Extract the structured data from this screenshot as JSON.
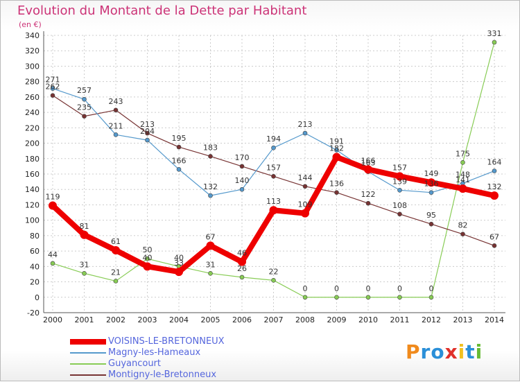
{
  "header": {
    "title": "Evolution du Montant de la Dette par Habitant",
    "unit": "(en €)"
  },
  "logo": {
    "text": "Proxiti",
    "colors": [
      "#f08a1c",
      "#2a8fd8",
      "#2a8fd8",
      "#e0302a",
      "#f0c020",
      "#2a8fd8",
      "#66bb33"
    ]
  },
  "colors": {
    "title": "#cc3377",
    "legend_text": "#5566dd",
    "axis": "#555555",
    "grid": "#cccccc"
  },
  "chart_data": {
    "type": "line",
    "title": "Evolution du Montant de la Dette par Habitant",
    "ylabel": "(en €)",
    "xlabel": "",
    "ylim": [
      -20,
      340
    ],
    "yticks": [
      -20,
      0,
      20,
      40,
      60,
      80,
      100,
      120,
      140,
      160,
      180,
      200,
      220,
      240,
      260,
      280,
      300,
      320,
      340
    ],
    "grid": true,
    "legend_position": "bottom",
    "categories": [
      "2000",
      "2001",
      "2002",
      "2003",
      "2004",
      "2005",
      "2006",
      "2007",
      "2008",
      "2009",
      "2010",
      "2011",
      "2012",
      "2013",
      "2014"
    ],
    "series": [
      {
        "name": "VOISINS-LE-BRETONNEUX",
        "color": "#ee0000",
        "values": [
          119,
          81,
          61,
          40,
          33,
          67,
          46,
          113,
          109,
          182,
          166,
          157,
          149,
          141,
          132
        ]
      },
      {
        "name": "Magny-les-Hameaux",
        "color": "#5599cc",
        "values": [
          271,
          257,
          211,
          204,
          166,
          132,
          140,
          194,
          213,
          191,
          163,
          139,
          136,
          148,
          164
        ]
      },
      {
        "name": "Guyancourt",
        "color": "#88cc55",
        "values": [
          44,
          31,
          21,
          50,
          40,
          31,
          26,
          22,
          0,
          0,
          0,
          0,
          0,
          175,
          331
        ]
      },
      {
        "name": "Montigny-le-Bretonneux",
        "color": "#773333",
        "values": [
          262,
          235,
          243,
          213,
          195,
          183,
          170,
          157,
          144,
          136,
          122,
          108,
          95,
          82,
          67
        ]
      }
    ]
  }
}
